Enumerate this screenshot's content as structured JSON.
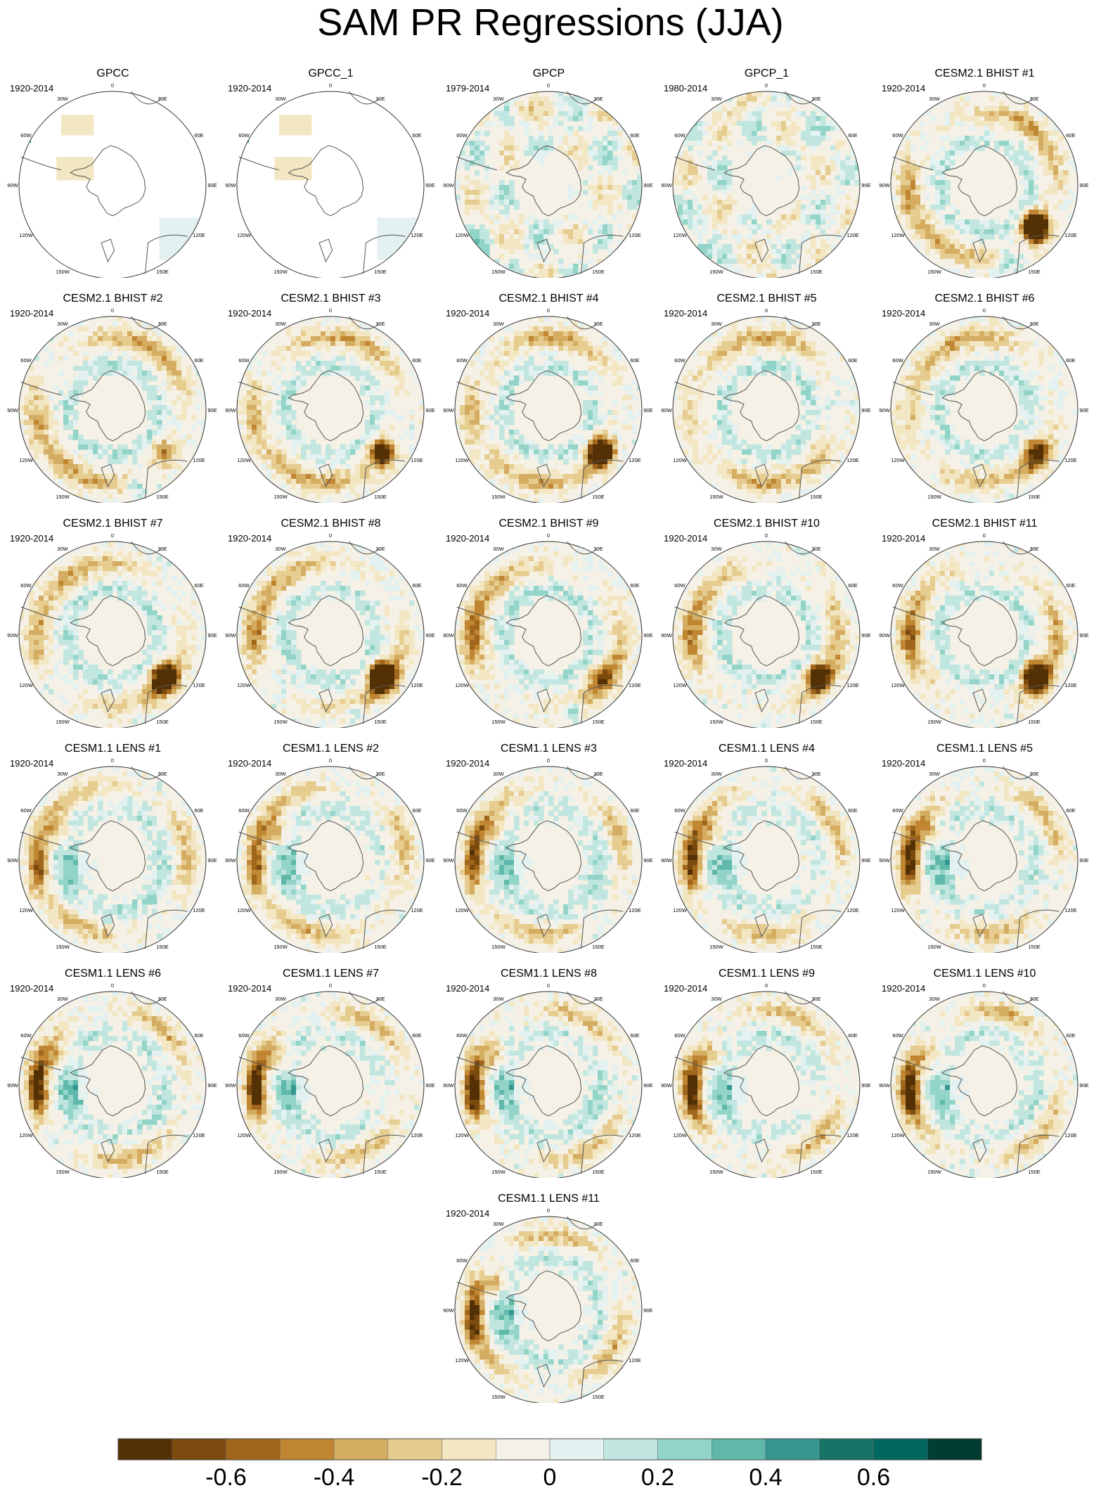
{
  "title": "SAM PR Regressions (JJA)",
  "lon_labels": [
    "0",
    "30E",
    "60E",
    "90E",
    "120E",
    "150E",
    "180",
    "150W",
    "120W",
    "90W",
    "60W",
    "30W"
  ],
  "panels": [
    {
      "title": "GPCC",
      "period": "1920-2014",
      "kind": "sparse"
    },
    {
      "title": "GPCC_1",
      "period": "1920-2014",
      "kind": "sparse"
    },
    {
      "title": "GPCP",
      "period": "1979-2014",
      "kind": "obs"
    },
    {
      "title": "GPCP_1",
      "period": "1980-2014",
      "kind": "obs"
    },
    {
      "title": "CESM2.1 BHIST #1",
      "period": "1920-2014",
      "kind": "cesm2"
    },
    {
      "title": "CESM2.1 BHIST #2",
      "period": "1920-2014",
      "kind": "cesm2"
    },
    {
      "title": "CESM2.1 BHIST #3",
      "period": "1920-2014",
      "kind": "cesm2"
    },
    {
      "title": "CESM2.1 BHIST #4",
      "period": "1920-2014",
      "kind": "cesm2"
    },
    {
      "title": "CESM2.1 BHIST #5",
      "period": "1920-2014",
      "kind": "cesm2"
    },
    {
      "title": "CESM2.1 BHIST #6",
      "period": "1920-2014",
      "kind": "cesm2"
    },
    {
      "title": "CESM2.1 BHIST #7",
      "period": "1920-2014",
      "kind": "cesm2"
    },
    {
      "title": "CESM2.1 BHIST #8",
      "period": "1920-2014",
      "kind": "cesm2"
    },
    {
      "title": "CESM2.1 BHIST #9",
      "period": "1920-2014",
      "kind": "cesm2"
    },
    {
      "title": "CESM2.1 BHIST #10",
      "period": "1920-2014",
      "kind": "cesm2"
    },
    {
      "title": "CESM2.1 BHIST #11",
      "period": "1920-2014",
      "kind": "cesm2"
    },
    {
      "title": "CESM1.1 LENS #1",
      "period": "1920-2014",
      "kind": "cesm1"
    },
    {
      "title": "CESM1.1 LENS #2",
      "period": "1920-2014",
      "kind": "cesm1"
    },
    {
      "title": "CESM1.1 LENS #3",
      "period": "1920-2014",
      "kind": "cesm1"
    },
    {
      "title": "CESM1.1 LENS #4",
      "period": "1920-2014",
      "kind": "cesm1"
    },
    {
      "title": "CESM1.1 LENS #5",
      "period": "1920-2014",
      "kind": "cesm1"
    },
    {
      "title": "CESM1.1 LENS #6",
      "period": "1920-2014",
      "kind": "cesm1"
    },
    {
      "title": "CESM1.1 LENS #7",
      "period": "1920-2014",
      "kind": "cesm1"
    },
    {
      "title": "CESM1.1 LENS #8",
      "period": "1920-2014",
      "kind": "cesm1"
    },
    {
      "title": "CESM1.1 LENS #9",
      "period": "1920-2014",
      "kind": "cesm1"
    },
    {
      "title": "CESM1.1 LENS #10",
      "period": "1920-2014",
      "kind": "cesm1"
    },
    {
      "title": "CESM1.1 LENS #11",
      "period": "1920-2014",
      "kind": "cesm1"
    }
  ],
  "colorbar": {
    "colors": [
      "#543005",
      "#7a4a0e",
      "#a0661c",
      "#c08632",
      "#d5ad62",
      "#e6cd8f",
      "#f3e6c2",
      "#f5f1e6",
      "#e3f1f0",
      "#c1e6e0",
      "#92d4c8",
      "#5fb8aa",
      "#35978f",
      "#177366",
      "#01665e",
      "#003c30"
    ],
    "tick_values": [
      -0.6,
      -0.4,
      -0.2,
      0,
      0.2,
      0.4,
      0.6
    ],
    "tick_labels": [
      "-0.6",
      "-0.4",
      "-0.2",
      "0",
      "0.2",
      "0.4",
      "0.6"
    ],
    "range": [
      -0.8,
      0.8
    ]
  },
  "chart_data": {
    "type": "heatmap",
    "title": "SAM PR Regressions (JJA)",
    "projection": "south polar stereographic",
    "panel_count": 26,
    "color_scale": {
      "min": -0.8,
      "max": 0.8,
      "levels": 16,
      "ticks": [
        -0.6,
        -0.4,
        -0.2,
        0,
        0.2,
        0.4,
        0.6
      ]
    },
    "series": [
      {
        "name": "GPCC",
        "period": "1920-2014"
      },
      {
        "name": "GPCC_1",
        "period": "1920-2014"
      },
      {
        "name": "GPCP",
        "period": "1979-2014"
      },
      {
        "name": "GPCP_1",
        "period": "1980-2014"
      },
      {
        "name": "CESM2.1 BHIST #1",
        "period": "1920-2014"
      },
      {
        "name": "CESM2.1 BHIST #2",
        "period": "1920-2014"
      },
      {
        "name": "CESM2.1 BHIST #3",
        "period": "1920-2014"
      },
      {
        "name": "CESM2.1 BHIST #4",
        "period": "1920-2014"
      },
      {
        "name": "CESM2.1 BHIST #5",
        "period": "1920-2014"
      },
      {
        "name": "CESM2.1 BHIST #6",
        "period": "1920-2014"
      },
      {
        "name": "CESM2.1 BHIST #7",
        "period": "1920-2014"
      },
      {
        "name": "CESM2.1 BHIST #8",
        "period": "1920-2014"
      },
      {
        "name": "CESM2.1 BHIST #9",
        "period": "1920-2014"
      },
      {
        "name": "CESM2.1 BHIST #10",
        "period": "1920-2014"
      },
      {
        "name": "CESM2.1 BHIST #11",
        "period": "1920-2014"
      },
      {
        "name": "CESM1.1 LENS #1",
        "period": "1920-2014"
      },
      {
        "name": "CESM1.1 LENS #2",
        "period": "1920-2014"
      },
      {
        "name": "CESM1.1 LENS #3",
        "period": "1920-2014"
      },
      {
        "name": "CESM1.1 LENS #4",
        "period": "1920-2014"
      },
      {
        "name": "CESM1.1 LENS #5",
        "period": "1920-2014"
      },
      {
        "name": "CESM1.1 LENS #6",
        "period": "1920-2014"
      },
      {
        "name": "CESM1.1 LENS #7",
        "period": "1920-2014"
      },
      {
        "name": "CESM1.1 LENS #8",
        "period": "1920-2014"
      },
      {
        "name": "CESM1.1 LENS #9",
        "period": "1920-2014"
      },
      {
        "name": "CESM1.1 LENS #10",
        "period": "1920-2014"
      },
      {
        "name": "CESM1.1 LENS #11",
        "period": "1920-2014"
      }
    ]
  }
}
